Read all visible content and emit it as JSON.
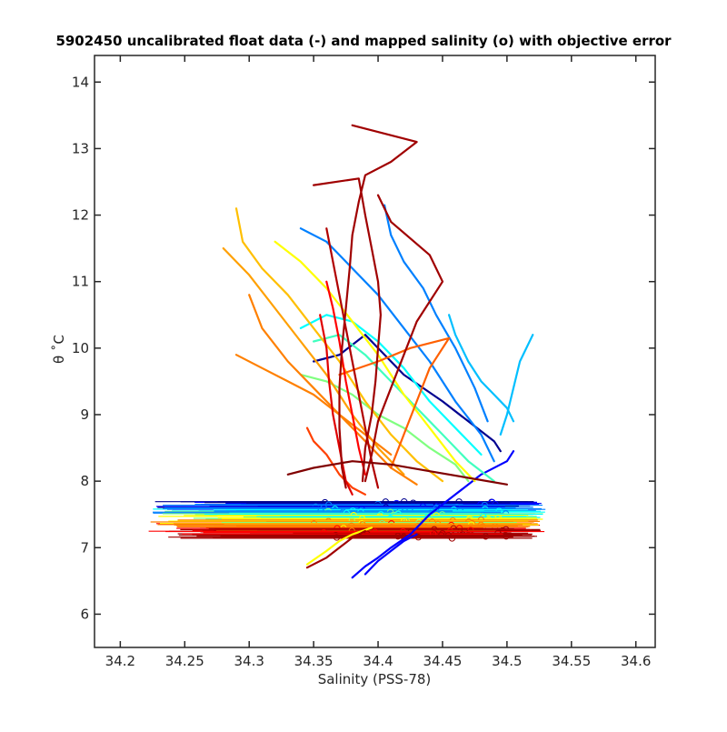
{
  "chart_data": {
    "type": "line",
    "title": "5902450 uncalibrated float data (-) and mapped salinity (o) with objective error",
    "xlabel": "Salinity (PSS-78)",
    "ylabel": "θ ˚C",
    "xlim": [
      34.18,
      34.615
    ],
    "ylim": [
      5.5,
      14.4
    ],
    "xticks": [
      34.2,
      34.25,
      34.3,
      34.35,
      34.4,
      34.45,
      34.5,
      34.55,
      34.6
    ],
    "xtick_labels": [
      "34.2",
      "34.25",
      "34.3",
      "34.35",
      "34.4",
      "34.45",
      "34.5",
      "34.55",
      "34.6"
    ],
    "yticks": [
      6,
      7,
      8,
      9,
      10,
      11,
      12,
      13,
      14
    ],
    "ytick_labels": [
      "6",
      "7",
      "8",
      "9",
      "10",
      "11",
      "12",
      "13",
      "14"
    ],
    "grid": false,
    "legend": "none",
    "colormap": "jet (profile index: blue = early, dark red = late)",
    "colors": [
      "#00008f",
      "#0000ff",
      "#0080ff",
      "#00ffff",
      "#80ff80",
      "#ffff00",
      "#ff8000",
      "#ff0000",
      "#a00000"
    ],
    "series": [
      {
        "values_xy": [
          [
            34.38,
            6.55
          ],
          [
            34.39,
            6.72
          ],
          [
            34.4,
            6.85
          ],
          [
            34.41,
            7.0
          ],
          [
            34.425,
            7.2
          ],
          [
            34.44,
            7.5
          ],
          [
            34.46,
            7.8
          ],
          [
            34.48,
            8.1
          ],
          [
            34.5,
            8.3
          ],
          [
            34.505,
            8.45
          ]
        ],
        "color": "#0000ff"
      },
      {
        "values_xy": [
          [
            34.35,
            9.8
          ],
          [
            34.37,
            9.9
          ],
          [
            34.39,
            10.2
          ],
          [
            34.42,
            9.6
          ],
          [
            34.45,
            9.2
          ],
          [
            34.47,
            8.9
          ],
          [
            34.49,
            8.6
          ],
          [
            34.495,
            8.45
          ]
        ],
        "color": "#00008f"
      },
      {
        "values_xy": [
          [
            34.34,
            11.8
          ],
          [
            34.36,
            11.6
          ],
          [
            34.38,
            11.2
          ],
          [
            34.4,
            10.8
          ],
          [
            34.42,
            10.3
          ],
          [
            34.44,
            9.8
          ],
          [
            34.46,
            9.2
          ],
          [
            34.48,
            8.7
          ],
          [
            34.49,
            8.3
          ]
        ],
        "color": "#0080ff"
      },
      {
        "values_xy": [
          [
            34.405,
            12.15
          ],
          [
            34.41,
            11.7
          ],
          [
            34.42,
            11.3
          ],
          [
            34.435,
            10.9
          ],
          [
            34.445,
            10.5
          ],
          [
            34.46,
            10.0
          ],
          [
            34.475,
            9.4
          ],
          [
            34.485,
            8.9
          ]
        ],
        "color": "#0080ff"
      },
      {
        "values_xy": [
          [
            34.455,
            10.5
          ],
          [
            34.46,
            10.2
          ],
          [
            34.47,
            9.8
          ],
          [
            34.48,
            9.5
          ],
          [
            34.49,
            9.3
          ],
          [
            34.5,
            9.1
          ],
          [
            34.505,
            8.9
          ]
        ],
        "color": "#00bfff"
      },
      {
        "values_xy": [
          [
            34.52,
            10.2
          ],
          [
            34.51,
            9.8
          ],
          [
            34.505,
            9.4
          ],
          [
            34.5,
            9.0
          ],
          [
            34.495,
            8.7
          ]
        ],
        "color": "#00bfff"
      },
      {
        "values_xy": [
          [
            34.34,
            10.3
          ],
          [
            34.36,
            10.5
          ],
          [
            34.38,
            10.4
          ],
          [
            34.4,
            10.1
          ],
          [
            34.42,
            9.7
          ],
          [
            34.44,
            9.2
          ],
          [
            34.46,
            8.8
          ],
          [
            34.48,
            8.4
          ]
        ],
        "color": "#00ffff"
      },
      {
        "values_xy": [
          [
            34.35,
            10.1
          ],
          [
            34.37,
            10.2
          ],
          [
            34.39,
            9.9
          ],
          [
            34.41,
            9.5
          ],
          [
            34.43,
            9.1
          ],
          [
            34.45,
            8.7
          ],
          [
            34.47,
            8.3
          ],
          [
            34.49,
            8.0
          ]
        ],
        "color": "#40ffbf"
      },
      {
        "values_xy": [
          [
            34.34,
            9.6
          ],
          [
            34.36,
            9.5
          ],
          [
            34.38,
            9.3
          ],
          [
            34.4,
            9.0
          ],
          [
            34.42,
            8.8
          ],
          [
            34.44,
            8.5
          ],
          [
            34.46,
            8.25
          ],
          [
            34.47,
            8.0
          ]
        ],
        "color": "#80ff80"
      },
      {
        "values_xy": [
          [
            34.345,
            6.75
          ],
          [
            34.36,
            6.95
          ],
          [
            34.37,
            7.1
          ],
          [
            34.38,
            7.2
          ],
          [
            34.395,
            7.3
          ]
        ],
        "color": "#ffff00"
      },
      {
        "values_xy": [
          [
            34.32,
            11.6
          ],
          [
            34.34,
            11.3
          ],
          [
            34.36,
            10.9
          ],
          [
            34.38,
            10.4
          ],
          [
            34.4,
            9.9
          ],
          [
            34.42,
            9.3
          ],
          [
            34.44,
            8.8
          ],
          [
            34.46,
            8.3
          ],
          [
            34.475,
            8.0
          ]
        ],
        "color": "#ffff00"
      },
      {
        "values_xy": [
          [
            34.29,
            12.1
          ],
          [
            34.295,
            11.6
          ],
          [
            34.31,
            11.2
          ],
          [
            34.33,
            10.8
          ],
          [
            34.35,
            10.3
          ],
          [
            34.37,
            9.8
          ],
          [
            34.39,
            9.2
          ],
          [
            34.41,
            8.7
          ],
          [
            34.43,
            8.3
          ],
          [
            34.45,
            8.0
          ]
        ],
        "color": "#ffbf00"
      },
      {
        "values_xy": [
          [
            34.28,
            11.5
          ],
          [
            34.3,
            11.1
          ],
          [
            34.32,
            10.6
          ],
          [
            34.34,
            10.1
          ],
          [
            34.36,
            9.6
          ],
          [
            34.38,
            9.0
          ],
          [
            34.4,
            8.5
          ],
          [
            34.42,
            8.1
          ]
        ],
        "color": "#ffa000"
      },
      {
        "values_xy": [
          [
            34.3,
            10.8
          ],
          [
            34.31,
            10.3
          ],
          [
            34.33,
            9.8
          ],
          [
            34.35,
            9.4
          ],
          [
            34.37,
            9.0
          ],
          [
            34.39,
            8.6
          ],
          [
            34.41,
            8.2
          ],
          [
            34.43,
            7.95
          ]
        ],
        "color": "#ff8000"
      },
      {
        "values_xy": [
          [
            34.29,
            9.9
          ],
          [
            34.31,
            9.7
          ],
          [
            34.33,
            9.5
          ],
          [
            34.35,
            9.3
          ],
          [
            34.37,
            9.0
          ],
          [
            34.39,
            8.7
          ],
          [
            34.41,
            8.4
          ]
        ],
        "color": "#ff8000"
      },
      {
        "values_xy": [
          [
            34.37,
            9.6
          ],
          [
            34.4,
            9.8
          ],
          [
            34.425,
            10.0
          ],
          [
            34.455,
            10.15
          ],
          [
            34.44,
            9.7
          ],
          [
            34.43,
            9.2
          ],
          [
            34.42,
            8.7
          ],
          [
            34.41,
            8.2
          ]
        ],
        "color": "#ff6000"
      },
      {
        "values_xy": [
          [
            34.345,
            8.8
          ],
          [
            34.35,
            8.6
          ],
          [
            34.36,
            8.4
          ],
          [
            34.37,
            8.1
          ],
          [
            34.38,
            7.9
          ],
          [
            34.39,
            7.8
          ]
        ],
        "color": "#ff4000"
      },
      {
        "values_xy": [
          [
            34.36,
            11.0
          ],
          [
            34.365,
            10.6
          ],
          [
            34.37,
            10.1
          ],
          [
            34.375,
            9.5
          ],
          [
            34.38,
            9.0
          ],
          [
            34.385,
            8.5
          ],
          [
            34.39,
            8.1
          ]
        ],
        "color": "#ff0000"
      },
      {
        "values_xy": [
          [
            34.355,
            10.5
          ],
          [
            34.36,
            10.0
          ],
          [
            34.362,
            9.5
          ],
          [
            34.365,
            9.0
          ],
          [
            34.37,
            8.5
          ],
          [
            34.375,
            8.0
          ],
          [
            34.38,
            7.8
          ]
        ],
        "color": "#e00000"
      },
      {
        "values_xy": [
          [
            34.38,
            13.35
          ],
          [
            34.43,
            13.1
          ],
          [
            34.41,
            12.8
          ],
          [
            34.39,
            12.6
          ],
          [
            34.385,
            12.2
          ],
          [
            34.38,
            11.7
          ],
          [
            34.378,
            11.2
          ],
          [
            34.375,
            10.6
          ],
          [
            34.372,
            10.0
          ],
          [
            34.37,
            9.4
          ],
          [
            34.37,
            8.8
          ],
          [
            34.372,
            8.2
          ],
          [
            34.375,
            7.9
          ]
        ],
        "color": "#a00000"
      },
      {
        "values_xy": [
          [
            34.35,
            12.45
          ],
          [
            34.385,
            12.55
          ],
          [
            34.39,
            12.0
          ],
          [
            34.395,
            11.5
          ],
          [
            34.4,
            11.0
          ],
          [
            34.402,
            10.5
          ],
          [
            34.4,
            10.0
          ],
          [
            34.398,
            9.5
          ],
          [
            34.395,
            9.0
          ],
          [
            34.39,
            8.5
          ],
          [
            34.388,
            8.0
          ]
        ],
        "color": "#a00000"
      },
      {
        "values_xy": [
          [
            34.36,
            11.8
          ],
          [
            34.365,
            11.3
          ],
          [
            34.37,
            10.8
          ],
          [
            34.375,
            10.3
          ],
          [
            34.38,
            9.8
          ],
          [
            34.385,
            9.3
          ],
          [
            34.39,
            8.8
          ],
          [
            34.395,
            8.3
          ],
          [
            34.4,
            7.9
          ]
        ],
        "color": "#b00000"
      },
      {
        "values_xy": [
          [
            34.4,
            12.3
          ],
          [
            34.41,
            11.9
          ],
          [
            34.44,
            11.4
          ],
          [
            34.45,
            11.0
          ],
          [
            34.43,
            10.4
          ],
          [
            34.42,
            9.9
          ],
          [
            34.41,
            9.4
          ],
          [
            34.4,
            8.9
          ],
          [
            34.395,
            8.4
          ],
          [
            34.39,
            8.0
          ]
        ],
        "color": "#a00000"
      },
      {
        "values_xy": [
          [
            34.33,
            8.1
          ],
          [
            34.35,
            8.2
          ],
          [
            34.38,
            8.3
          ],
          [
            34.41,
            8.25
          ],
          [
            34.44,
            8.15
          ],
          [
            34.47,
            8.05
          ],
          [
            34.5,
            7.95
          ]
        ],
        "color": "#800000"
      },
      {
        "values_xy": [
          [
            34.345,
            6.7
          ],
          [
            34.36,
            6.85
          ],
          [
            34.37,
            7.0
          ],
          [
            34.38,
            7.15
          ],
          [
            34.39,
            7.25
          ]
        ],
        "color": "#a00000"
      },
      {
        "values_xy": [
          [
            34.39,
            6.6
          ],
          [
            34.4,
            6.8
          ],
          [
            34.41,
            6.95
          ],
          [
            34.42,
            7.1
          ],
          [
            34.43,
            7.2
          ]
        ],
        "color": "#0000ff"
      }
    ],
    "mapped_band": {
      "theta_range": [
        7.15,
        7.7
      ],
      "salinity_center_range": [
        34.35,
        34.5
      ],
      "error_extent": [
        34.22,
        34.53
      ]
    }
  }
}
